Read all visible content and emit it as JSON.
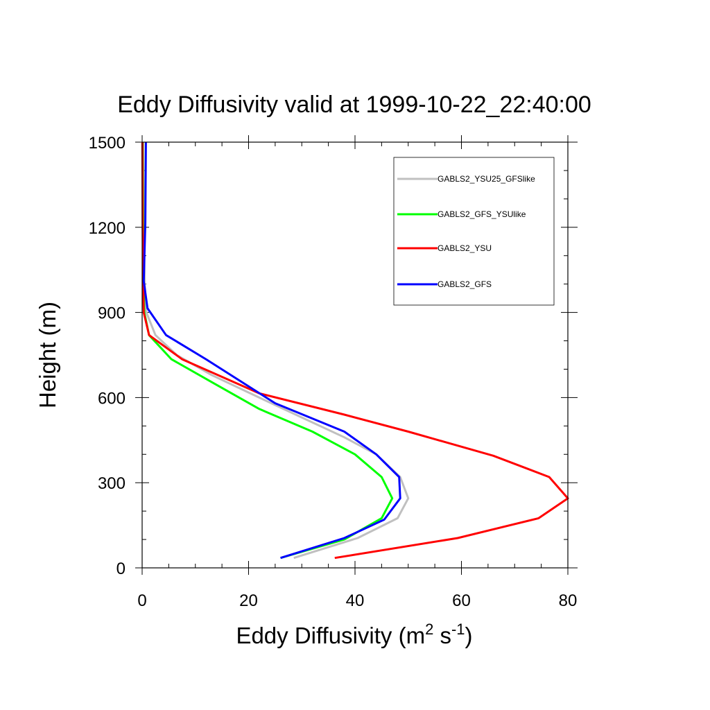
{
  "chart_data": {
    "type": "line",
    "title": "Eddy Diffusivity valid at 1999-10-22_22:40:00",
    "xlabel": {
      "base": "Eddy Diffusivity (m",
      "sup1": "2",
      "mid": " s",
      "sup2": "-1",
      "end": ")"
    },
    "ylabel": "Height (m)",
    "xlim": [
      0,
      80
    ],
    "ylim": [
      0,
      1500
    ],
    "xticks": [
      0,
      20,
      40,
      60,
      80
    ],
    "xtick_labels": [
      "0",
      "20",
      "40",
      "60",
      "80"
    ],
    "yticks": [
      0,
      300,
      600,
      900,
      1200,
      1500
    ],
    "ytick_labels": [
      "0",
      "300",
      "600",
      "900",
      "1200",
      "1500"
    ],
    "grid": false,
    "legend_position": "top-right",
    "series": [
      {
        "name": "GABLS2_YSU25_GFSlike",
        "color": "#c0c0c0",
        "points": [
          [
            28.5,
            35
          ],
          [
            40.5,
            105
          ],
          [
            48.0,
            175
          ],
          [
            50.0,
            245
          ],
          [
            48.5,
            320
          ],
          [
            44.0,
            400
          ],
          [
            38.0,
            460
          ],
          [
            30.0,
            530
          ],
          [
            22.0,
            600
          ],
          [
            13.0,
            680
          ],
          [
            6.5,
            750
          ],
          [
            2.5,
            820
          ],
          [
            0.8,
            900
          ],
          [
            0.5,
            1000
          ],
          [
            0.3,
            1200
          ],
          [
            0.2,
            1500
          ]
        ]
      },
      {
        "name": "GABLS2_GFS_YSUlike",
        "color": "#00ff00",
        "points": [
          [
            26.0,
            35
          ],
          [
            38.0,
            100
          ],
          [
            45.0,
            175
          ],
          [
            47.0,
            245
          ],
          [
            45.0,
            320
          ],
          [
            40.0,
            400
          ],
          [
            32.0,
            480
          ],
          [
            22.0,
            560
          ],
          [
            13.5,
            650
          ],
          [
            5.5,
            735
          ],
          [
            1.3,
            820
          ],
          [
            0.4,
            900
          ],
          [
            0.3,
            1000
          ],
          [
            0.2,
            1200
          ],
          [
            0.1,
            1500
          ]
        ]
      },
      {
        "name": "GABLS2_YSU",
        "color": "#ff0000",
        "points": [
          [
            36.2,
            35
          ],
          [
            59.3,
            105
          ],
          [
            74.5,
            175
          ],
          [
            80.0,
            245
          ],
          [
            76.5,
            320
          ],
          [
            66.0,
            395
          ],
          [
            50.0,
            480
          ],
          [
            38.0,
            540
          ],
          [
            22.0,
            615
          ],
          [
            7.5,
            735
          ],
          [
            1.3,
            820
          ],
          [
            0.3,
            900
          ],
          [
            0.2,
            1000
          ],
          [
            0.1,
            1200
          ],
          [
            0.05,
            1500
          ]
        ]
      },
      {
        "name": "GABLS2_GFS",
        "color": "#0000ff",
        "points": [
          [
            26.0,
            35
          ],
          [
            38.0,
            105
          ],
          [
            45.5,
            170
          ],
          [
            48.5,
            245
          ],
          [
            48.3,
            320
          ],
          [
            44.0,
            400
          ],
          [
            38.0,
            480
          ],
          [
            25.0,
            580
          ],
          [
            12.0,
            735
          ],
          [
            4.5,
            820
          ],
          [
            1.0,
            915
          ],
          [
            0.3,
            1010
          ],
          [
            0.6,
            1215
          ],
          [
            0.7,
            1500
          ]
        ]
      }
    ]
  }
}
